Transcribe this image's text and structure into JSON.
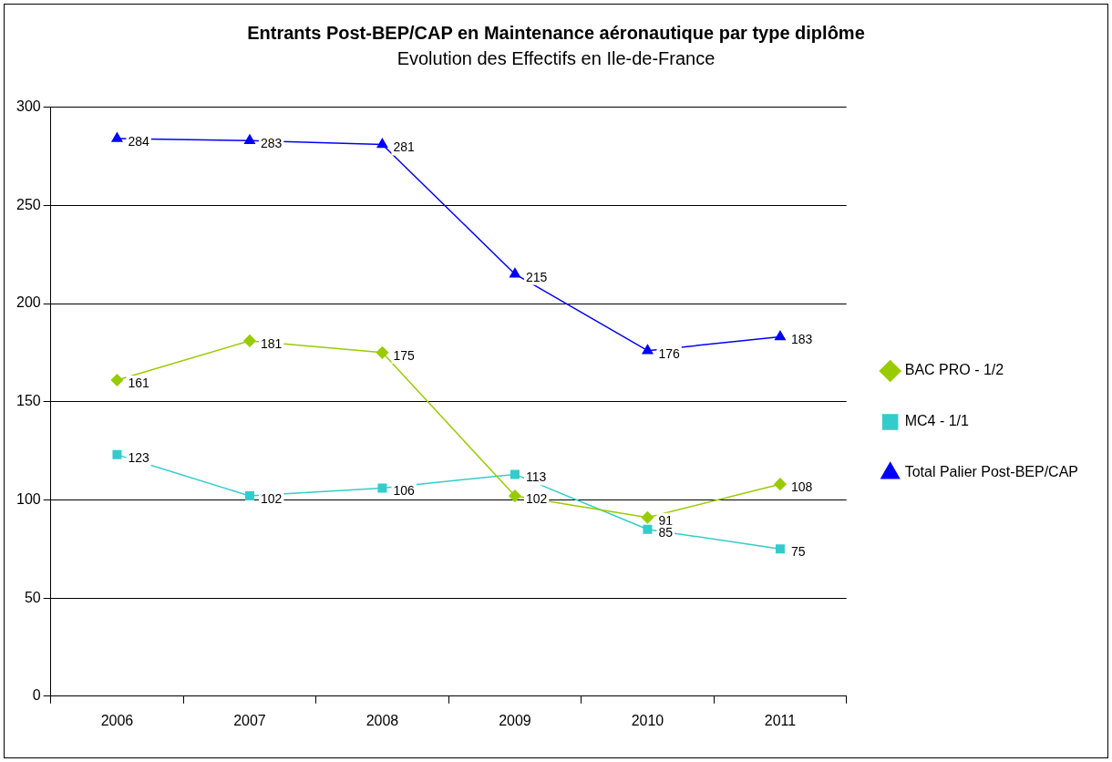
{
  "chart_data": {
    "type": "line",
    "title": "Entrants Post-BEP/CAP en Maintenance aéronautique par type diplôme",
    "subtitle": "Evolution des Effectifs en Ile-de-France",
    "categories": [
      "2006",
      "2007",
      "2008",
      "2009",
      "2010",
      "2011"
    ],
    "series": [
      {
        "name": "BAC PRO - 1/2",
        "color": "#99cc00",
        "marker": "diamond",
        "values": [
          161,
          181,
          175,
          102,
          91,
          108
        ]
      },
      {
        "name": "MC4 - 1/1",
        "color": "#33cccc",
        "marker": "square",
        "values": [
          123,
          102,
          106,
          113,
          85,
          75
        ]
      },
      {
        "name": "Total Palier Post-BEP/CAP",
        "color": "#0000ff",
        "marker": "triangle",
        "values": [
          284,
          283,
          281,
          215,
          176,
          183
        ]
      }
    ],
    "ylim": [
      0,
      300
    ],
    "yticks": [
      0,
      50,
      100,
      150,
      200,
      250,
      300
    ],
    "grid": "y",
    "legend": "right",
    "data_labels": true,
    "line_style": "solid"
  }
}
